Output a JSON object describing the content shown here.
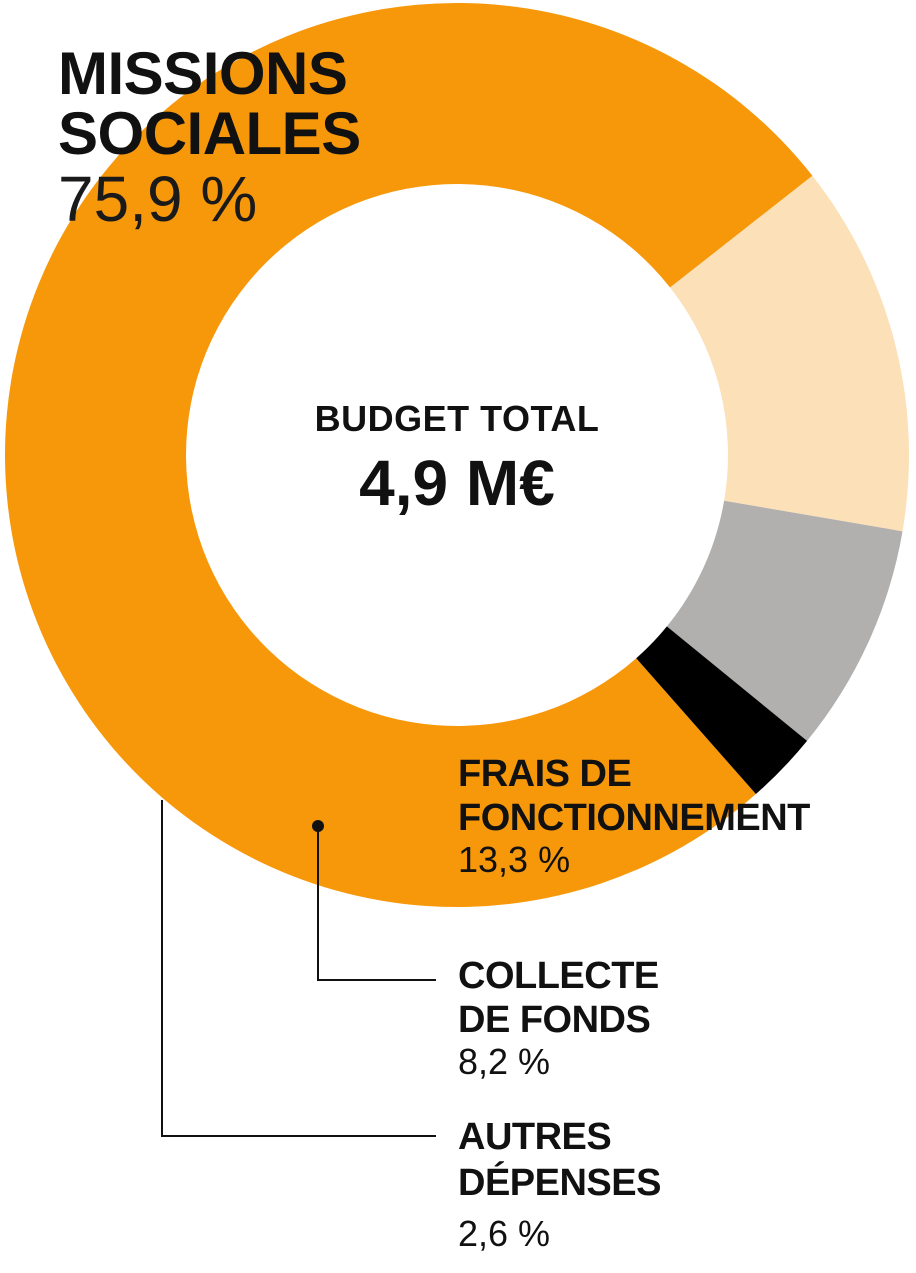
{
  "chart_data": {
    "type": "pie",
    "center_title": "BUDGET TOTAL",
    "center_value": "4,9 M€",
    "slices": [
      {
        "label_lines": [
          "MISSIONS",
          "SOCIALES"
        ],
        "value": 75.9,
        "display": "75,9 %",
        "color": "#F7980A"
      },
      {
        "label_lines": [
          "FRAIS DE",
          "FONCTIONNEMENT"
        ],
        "value": 13.3,
        "display": "13,3 %",
        "color": "#FCE0B8"
      },
      {
        "label_lines": [
          "COLLECTE",
          "DE FONDS"
        ],
        "value": 8.2,
        "display": "8,2 %",
        "color": "#B1B0AF"
      },
      {
        "label_lines": [
          "AUTRES",
          "DÉPENSES"
        ],
        "value": 2.6,
        "display": "2,6 %",
        "color": "#000000"
      }
    ]
  }
}
